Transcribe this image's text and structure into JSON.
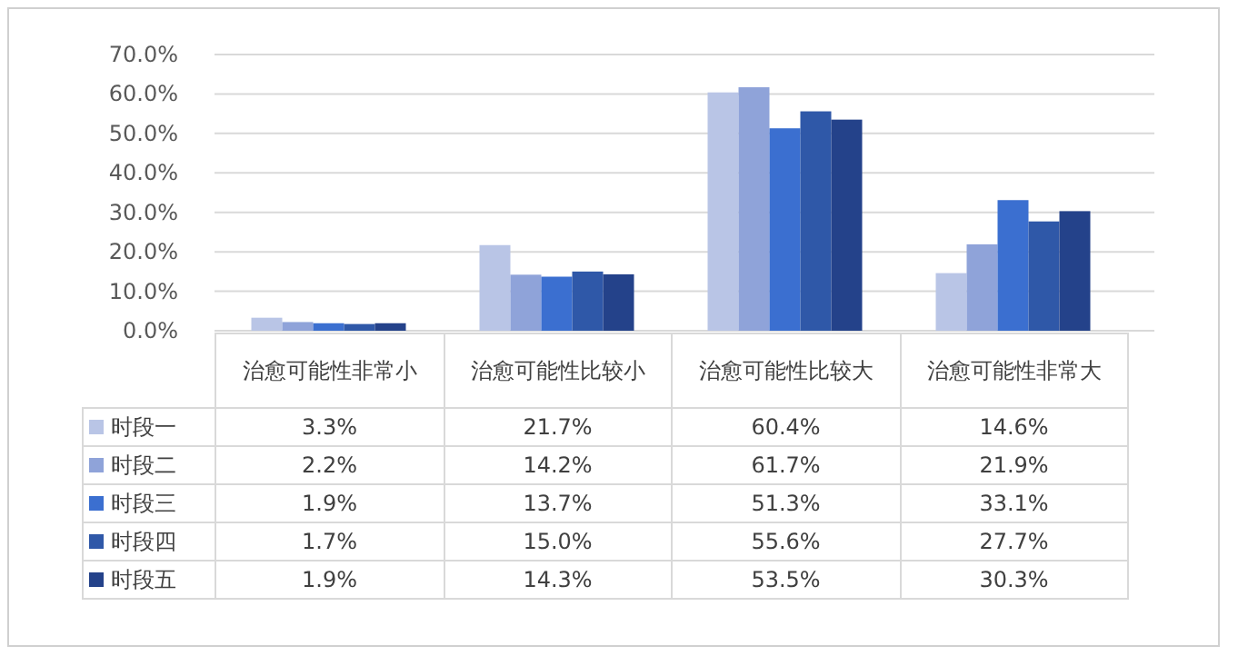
{
  "chart_data": {
    "type": "bar",
    "categories": [
      "治愈可能性非常小",
      "治愈可能性比较小",
      "治愈可能性比较大",
      "治愈可能性非常大"
    ],
    "ylim": [
      0,
      70
    ],
    "yticks": [
      {
        "value": 0,
        "label": "0.0%"
      },
      {
        "value": 10,
        "label": "10.0%"
      },
      {
        "value": 20,
        "label": "20.0%"
      },
      {
        "value": 30,
        "label": "30.0%"
      },
      {
        "value": 40,
        "label": "40.0%"
      },
      {
        "value": 50,
        "label": "50.0%"
      },
      {
        "value": 60,
        "label": "60.0%"
      },
      {
        "value": 70,
        "label": "70.0%"
      }
    ],
    "grid": "y",
    "legend": "bottom",
    "series": [
      {
        "name": "时段一",
        "color": "#b9c5e6",
        "values": [
          3.3,
          21.7,
          60.4,
          14.6
        ],
        "value_labels": [
          "3.3%",
          "21.7%",
          "60.4%",
          "14.6%"
        ]
      },
      {
        "name": "时段二",
        "color": "#8fa3d9",
        "values": [
          2.2,
          14.2,
          61.7,
          21.9
        ],
        "value_labels": [
          "2.2%",
          "14.2%",
          "61.7%",
          "21.9%"
        ]
      },
      {
        "name": "时段三",
        "color": "#3b6fd0",
        "values": [
          1.9,
          13.7,
          51.3,
          33.1
        ],
        "value_labels": [
          "1.9%",
          "13.7%",
          "51.3%",
          "33.1%"
        ]
      },
      {
        "name": "时段四",
        "color": "#2f58a8",
        "values": [
          1.7,
          15.0,
          55.6,
          27.7
        ],
        "value_labels": [
          "1.7%",
          "15.0%",
          "55.6%",
          "27.7%"
        ]
      },
      {
        "name": "时段五",
        "color": "#24428a",
        "values": [
          1.9,
          14.3,
          53.5,
          30.3
        ],
        "value_labels": [
          "1.9%",
          "14.3%",
          "53.5%",
          "30.3%"
        ]
      }
    ]
  }
}
